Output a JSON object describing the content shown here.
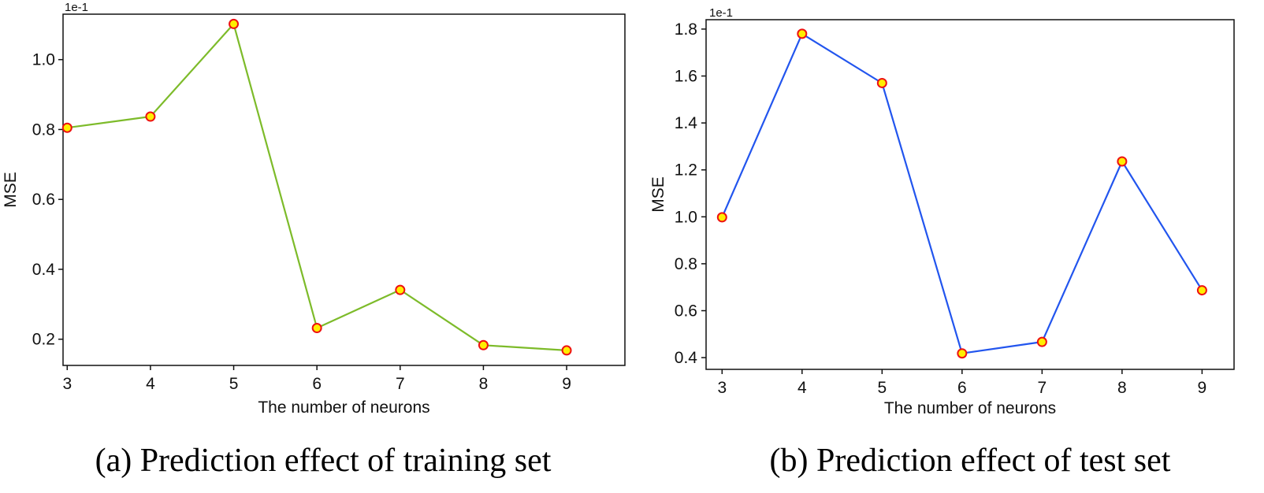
{
  "chart_data": [
    {
      "type": "line",
      "caption": "(a) Prediction effect of training set",
      "xlabel": "The number of neurons",
      "ylabel": "MSE",
      "exponent_label": "1e-1",
      "x": [
        3,
        4,
        5,
        6,
        7,
        8,
        9
      ],
      "values": [
        0.805,
        0.837,
        1.102,
        0.232,
        0.341,
        0.183,
        0.168
      ],
      "xlim": [
        2.95,
        9.7
      ],
      "ylim": [
        0.125,
        1.13
      ],
      "yticks": [
        0.2,
        0.4,
        0.6,
        0.8,
        1.0
      ],
      "ytick_labels": [
        "0.2",
        "0.4",
        "0.6",
        "0.8",
        "1.0"
      ],
      "xticks": [
        3,
        4,
        5,
        6,
        7,
        8,
        9
      ],
      "xtick_labels": [
        "3",
        "4",
        "5",
        "6",
        "7",
        "8",
        "9"
      ],
      "line_color": "#7dbb2a",
      "marker_fill": "#ffee00",
      "marker_edge": "#ee1111"
    },
    {
      "type": "line",
      "caption": "(b) Prediction effect of test set",
      "xlabel": "The number of neurons",
      "ylabel": "MSE",
      "exponent_label": "1e-1",
      "x": [
        3,
        4,
        5,
        6,
        7,
        8,
        9
      ],
      "values": [
        0.998,
        1.78,
        1.57,
        0.418,
        0.467,
        1.236,
        0.687
      ],
      "xlim": [
        2.8,
        9.4
      ],
      "ylim": [
        0.35,
        1.84
      ],
      "yticks": [
        0.4,
        0.6,
        0.8,
        1.0,
        1.2,
        1.4,
        1.6,
        1.8
      ],
      "ytick_labels": [
        "0.4",
        "0.6",
        "0.8",
        "1.0",
        "1.2",
        "1.4",
        "1.6",
        "1.8"
      ],
      "xticks": [
        3,
        4,
        5,
        6,
        7,
        8,
        9
      ],
      "xtick_labels": [
        "3",
        "4",
        "5",
        "6",
        "7",
        "8",
        "9"
      ],
      "line_color": "#2255ee",
      "marker_fill": "#ffee00",
      "marker_edge": "#ee1111"
    }
  ]
}
